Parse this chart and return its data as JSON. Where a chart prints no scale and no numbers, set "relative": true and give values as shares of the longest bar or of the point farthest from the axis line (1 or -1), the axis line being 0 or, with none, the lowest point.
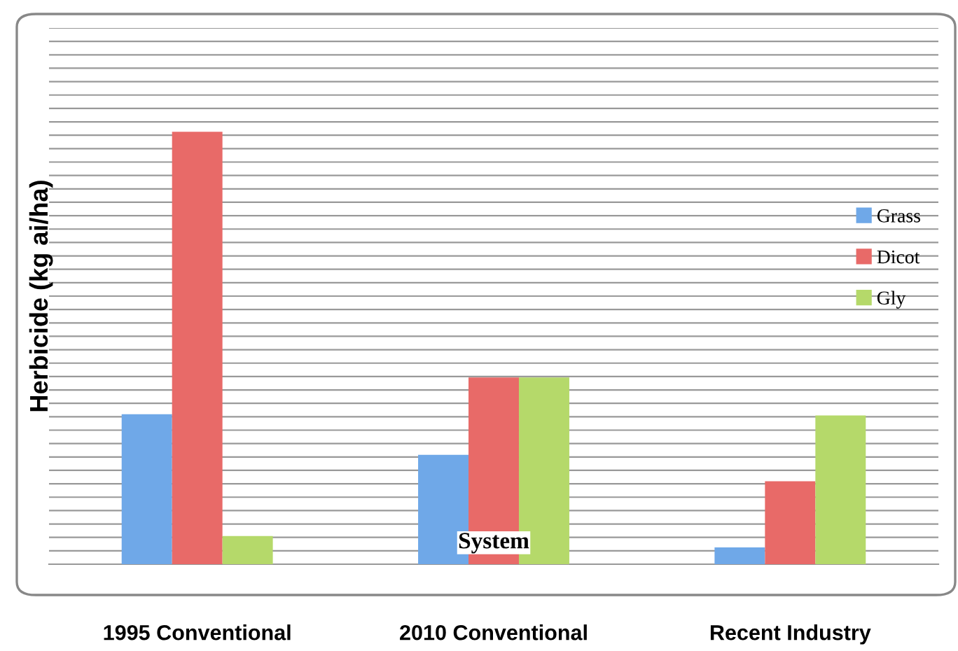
{
  "chart_data": {
    "type": "bar",
    "relative": true,
    "xlabel": "System",
    "ylabel": "Herbicide (kg ai/ha)",
    "categories": [
      "1995 Conventional",
      "2010 Conventional",
      "Recent Industry"
    ],
    "series": [
      {
        "name": "Grass",
        "color": "#6fa8e8",
        "values": [
          0.347,
          0.253,
          0.039
        ]
      },
      {
        "name": "Dicot",
        "color": "#e86a68",
        "values": [
          1,
          0.432,
          0.192
        ]
      },
      {
        "name": "Gly",
        "color": "#b5d96a",
        "values": [
          0.065,
          0.432,
          0.344
        ]
      }
    ],
    "grid": "y",
    "legend": "right"
  }
}
